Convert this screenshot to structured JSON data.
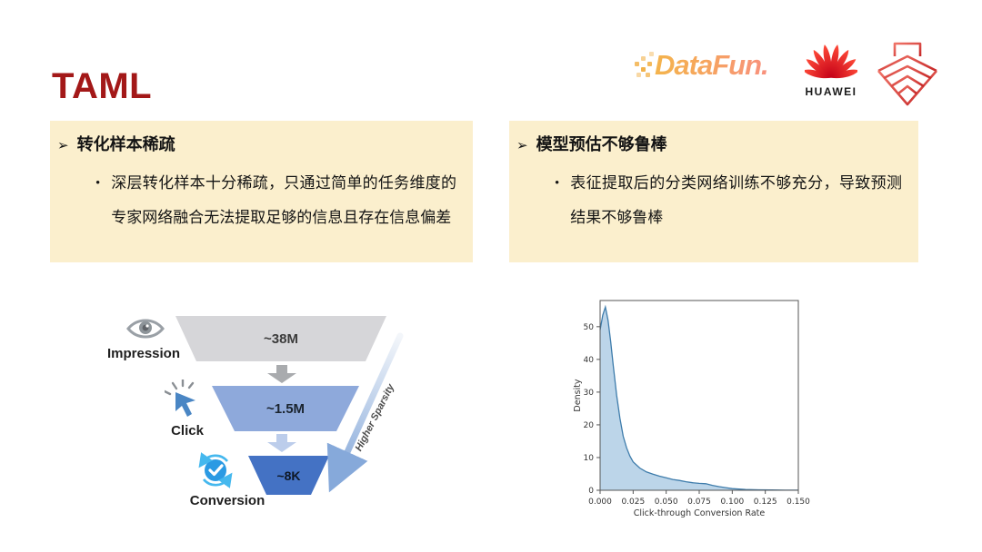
{
  "slide": {
    "title": "TAML"
  },
  "logos": {
    "datafun": {
      "text": "DataFun."
    },
    "huawei": {
      "text": "HUAWEI"
    },
    "ark": {
      "name": "noahs-ark-lab-logo"
    }
  },
  "panels": [
    {
      "marker": "➢",
      "heading": "转化样本稀疏",
      "bullet_marker": "•",
      "bullet": "深层转化样本十分稀疏，只通过简单的任务维度的专家网络融合无法提取足够的信息且存在信息偏差"
    },
    {
      "marker": "➢",
      "heading": "模型预估不够鲁棒",
      "bullet_marker": "•",
      "bullet": "表征提取后的分类网络训练不够充分，导致预测结果不够鲁棒"
    }
  ],
  "funnel": {
    "stages": [
      {
        "label": "Impression",
        "value": "~38M",
        "icon": "eye-icon",
        "color": "#D6D6D9"
      },
      {
        "label": "Click",
        "value": "~1.5M",
        "icon": "cursor-click-icon",
        "color": "#8EA9DB"
      },
      {
        "label": "Conversion",
        "value": "~8K",
        "icon": "conversion-check-icon",
        "color": "#4472C4"
      }
    ],
    "arrow_colors": [
      "#A9ABAE",
      "#BCCDEB"
    ],
    "side_arrow_label": "Higher Sparsity"
  },
  "chart_data": {
    "type": "area",
    "title": "",
    "xlabel": "Click-through Conversion Rate",
    "ylabel": "Density",
    "xlim": [
      0,
      0.15
    ],
    "ylim": [
      0,
      58
    ],
    "xticks": [
      "0.000",
      "0.025",
      "0.050",
      "0.075",
      "0.100",
      "0.125",
      "0.150"
    ],
    "yticks": [
      0,
      10,
      20,
      30,
      40,
      50
    ],
    "grid": false,
    "legend": "none",
    "line_color": "#3E7CAB",
    "fill_color": "rgba(122,172,212,0.5)",
    "series": [
      {
        "name": "ctcvr-density",
        "x": [
          0,
          0.002,
          0.004,
          0.006,
          0.008,
          0.01,
          0.0125,
          0.015,
          0.0175,
          0.02,
          0.0225,
          0.025,
          0.03,
          0.035,
          0.04,
          0.045,
          0.05,
          0.055,
          0.06,
          0.065,
          0.07,
          0.075,
          0.08,
          0.085,
          0.09,
          0.095,
          0.1,
          0.105,
          0.11,
          0.12,
          0.13,
          0.14,
          0.15
        ],
        "y": [
          49,
          53.5,
          56,
          52,
          45.5,
          38,
          29,
          22,
          16.5,
          13,
          10.5,
          8.7,
          6.8,
          5.6,
          4.9,
          4.3,
          3.8,
          3.3,
          3.0,
          2.6,
          2.3,
          2.1,
          2.0,
          1.5,
          1.1,
          0.8,
          0.5,
          0.35,
          0.25,
          0.15,
          0.08,
          0.04,
          0.02
        ]
      }
    ]
  }
}
